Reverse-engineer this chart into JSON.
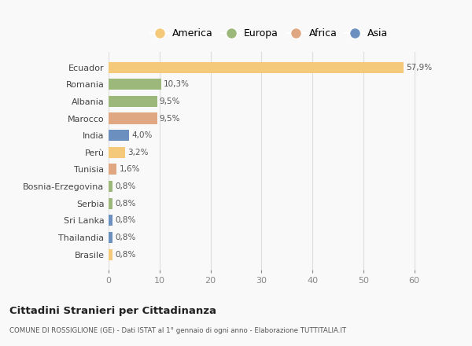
{
  "categories": [
    "Ecuador",
    "Romania",
    "Albania",
    "Marocco",
    "India",
    "Perù",
    "Tunisia",
    "Bosnia-Erzegovina",
    "Serbia",
    "Sri Lanka",
    "Thailandia",
    "Brasile"
  ],
  "values": [
    57.9,
    10.3,
    9.5,
    9.5,
    4.0,
    3.2,
    1.6,
    0.8,
    0.8,
    0.8,
    0.8,
    0.8
  ],
  "labels": [
    "57,9%",
    "10,3%",
    "9,5%",
    "9,5%",
    "4,0%",
    "3,2%",
    "1,6%",
    "0,8%",
    "0,8%",
    "0,8%",
    "0,8%",
    "0,8%"
  ],
  "colors": [
    "#F5C97A",
    "#9CB87A",
    "#9CB87A",
    "#E0A882",
    "#6B8FBF",
    "#F5C97A",
    "#E0A882",
    "#9CB87A",
    "#9CB87A",
    "#6B8FBF",
    "#6B8FBF",
    "#F5C97A"
  ],
  "continent_colors": {
    "America": "#F5C97A",
    "Europa": "#9CB87A",
    "Africa": "#E0A882",
    "Asia": "#6B8FBF"
  },
  "title": "Cittadini Stranieri per Cittadinanza",
  "subtitle": "COMUNE DI ROSSIGLIONE (GE) - Dati ISTAT al 1° gennaio di ogni anno - Elaborazione TUTTITALIA.IT",
  "xlim": [
    0,
    63
  ],
  "xticks": [
    0,
    10,
    20,
    30,
    40,
    50,
    60
  ],
  "background_color": "#f9f9f9"
}
